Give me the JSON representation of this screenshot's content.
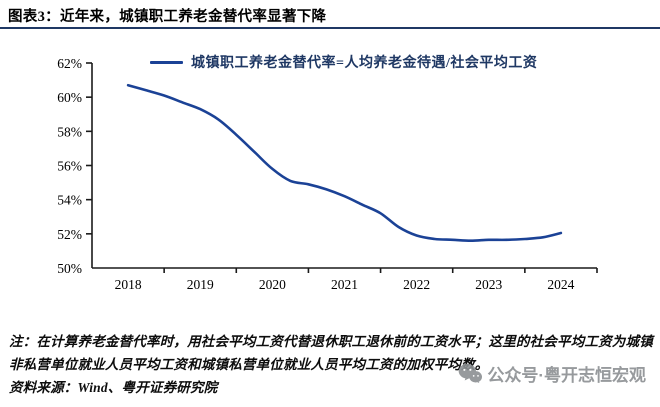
{
  "page": {
    "title": "图表3：近年来，城镇职工养老金替代率显著下降",
    "note": "注：在计算养老金替代率时，用社会平均工资代替退休职工退休前的工资水平；这里的社会平均工资为城镇非私营单位就业人员平均工资和城镇私营单位就业人员平均工资的加权平均数。",
    "source": "资料来源：Wind、粤开证券研究院",
    "watermark": "公众号·粤开志恒宏观"
  },
  "colors": {
    "line": "#1B4296",
    "legend_text": "#1F3864",
    "axis": "#1a1a1a",
    "divider": "#1F3864",
    "watermark": "#8C9093",
    "text": "#0d0d0d"
  },
  "chart_data": {
    "type": "line",
    "title": "",
    "xlabel": "",
    "ylabel": "",
    "legend_position": "top-center",
    "grid": false,
    "ylim": [
      50,
      62
    ],
    "ytick_step": 2,
    "ytick_labels": [
      "62%",
      "60%",
      "58%",
      "56%",
      "54%",
      "52%",
      "50%"
    ],
    "x_categories": [
      "2018",
      "2019",
      "2020",
      "2021",
      "2022",
      "2023",
      "2024"
    ],
    "series": [
      {
        "name": "城镇职工养老金替代率=人均养老金待遇/社会平均工资",
        "x": [
          2018,
          2018.25,
          2018.5,
          2018.75,
          2019,
          2019.25,
          2019.5,
          2019.75,
          2020,
          2020.25,
          2020.5,
          2020.75,
          2021,
          2021.25,
          2021.5,
          2021.75,
          2022,
          2022.25,
          2022.5,
          2022.75,
          2023,
          2023.25,
          2023.5,
          2023.75,
          2024
        ],
        "values": [
          60.7,
          60.4,
          60.1,
          59.7,
          59.3,
          58.7,
          57.8,
          56.8,
          55.8,
          55.1,
          54.9,
          54.6,
          54.2,
          53.7,
          53.2,
          52.4,
          51.9,
          51.7,
          51.65,
          51.6,
          51.65,
          51.65,
          51.7,
          51.8,
          52.05
        ],
        "yearly_values": {
          "2018": 60.7,
          "2019": 59.3,
          "2020": 55.8,
          "2021": 54.2,
          "2022": 51.9,
          "2023": 51.7,
          "2024": 52.1
        }
      }
    ]
  }
}
